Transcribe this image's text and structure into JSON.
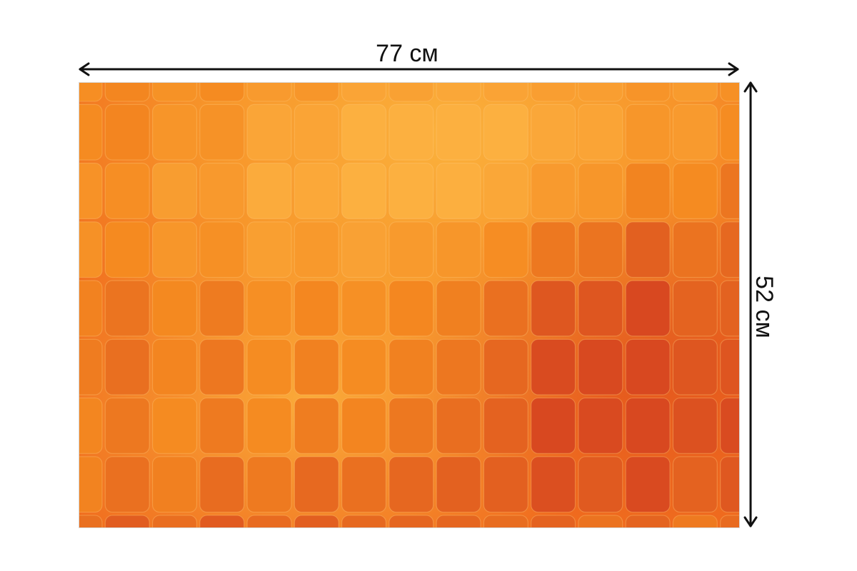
{
  "product": {
    "width_label": "77 см",
    "height_label": "52 см",
    "pattern_icon": "rounded-square-mosaic",
    "colors": {
      "base": "#f58a20",
      "glow": "#fbb13c",
      "dark": "#d9461e",
      "arrow": "#111111"
    }
  }
}
